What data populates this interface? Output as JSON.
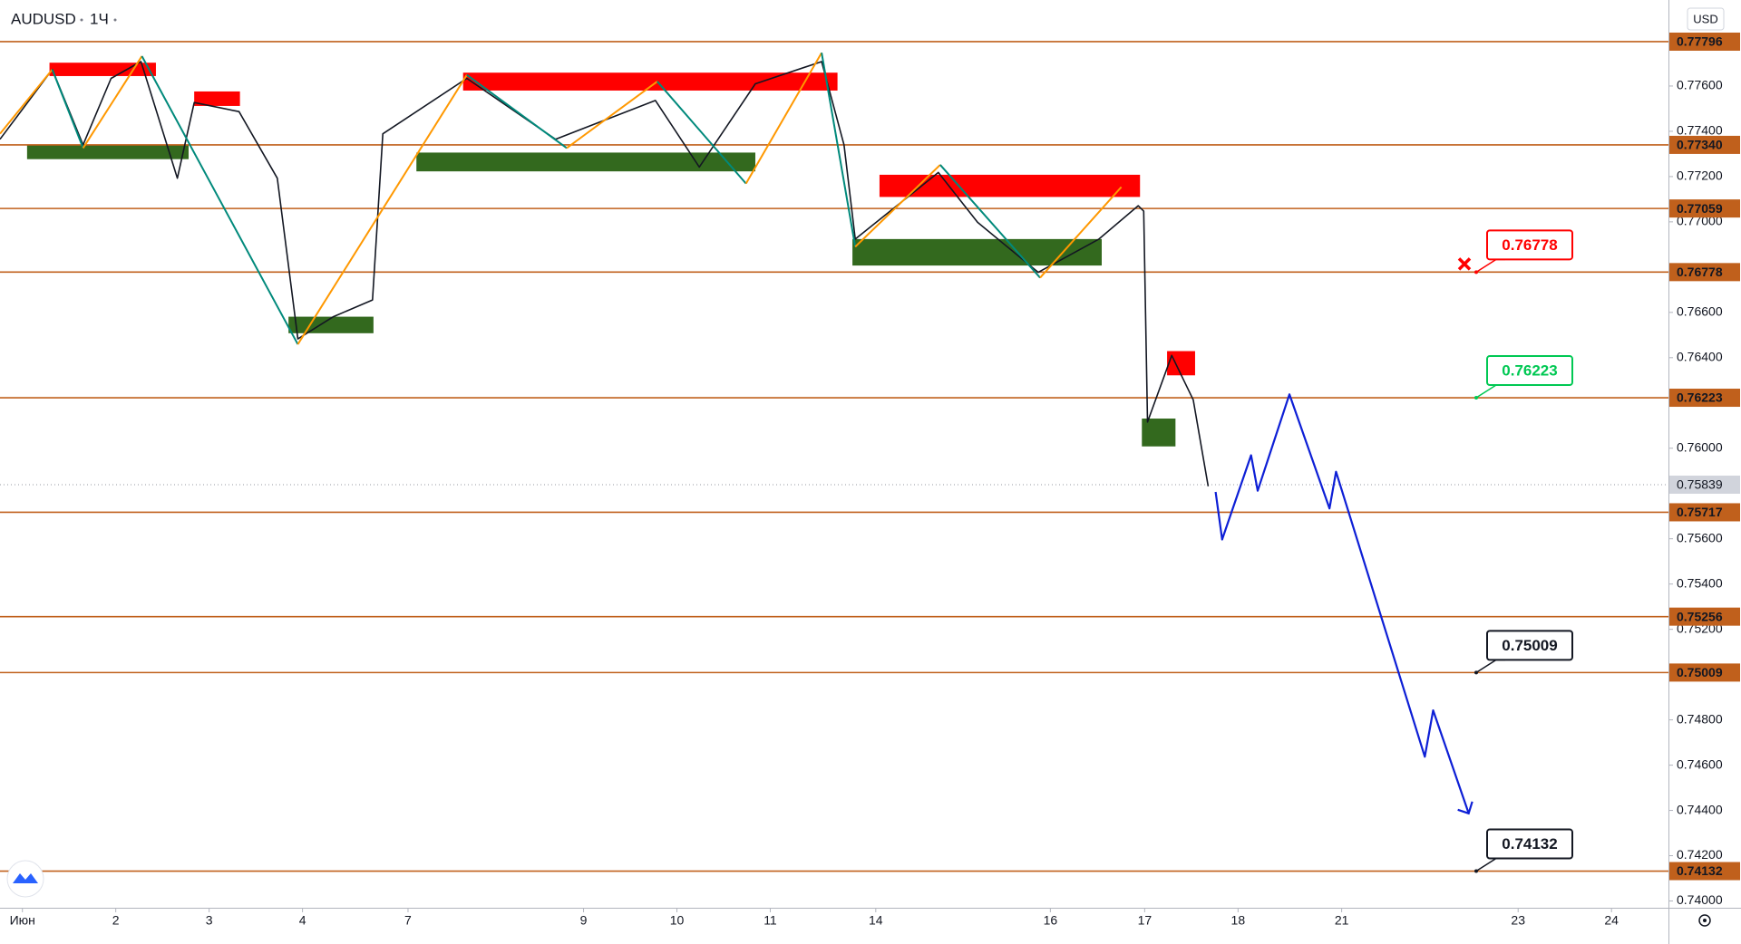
{
  "chart_data": {
    "type": "line",
    "symbol": "AUDUSD",
    "interval": "1Ч",
    "currency": "USD",
    "xlim": [
      -0.24,
      17.63
    ],
    "ylim": [
      0.7397,
      0.7798
    ],
    "xticks": [
      {
        "value": 0,
        "label": "Июн"
      },
      {
        "value": 1,
        "label": "2"
      },
      {
        "value": 2,
        "label": "3"
      },
      {
        "value": 3,
        "label": "4"
      },
      {
        "value": 4.13,
        "label": "7"
      },
      {
        "value": 6.01,
        "label": "9"
      },
      {
        "value": 7.01,
        "label": "10"
      },
      {
        "value": 8.01,
        "label": "11"
      },
      {
        "value": 9.14,
        "label": "14"
      },
      {
        "value": 11.01,
        "label": "16"
      },
      {
        "value": 12.02,
        "label": "17"
      },
      {
        "value": 13.02,
        "label": "18"
      },
      {
        "value": 14.13,
        "label": "21"
      },
      {
        "value": 16.02,
        "label": "23"
      },
      {
        "value": 17.02,
        "label": "24"
      }
    ],
    "yticks": [
      {
        "value": 0.776,
        "label": "0.77600"
      },
      {
        "value": 0.774,
        "label": "0.77400"
      },
      {
        "value": 0.772,
        "label": "0.77200"
      },
      {
        "value": 0.77,
        "label": "0.77000"
      },
      {
        "value": 0.766,
        "label": "0.76600"
      },
      {
        "value": 0.764,
        "label": "0.76400"
      },
      {
        "value": 0.76,
        "label": "0.76000"
      },
      {
        "value": 0.756,
        "label": "0.75600"
      },
      {
        "value": 0.754,
        "label": "0.75400"
      },
      {
        "value": 0.752,
        "label": "0.75200"
      },
      {
        "value": 0.748,
        "label": "0.74800"
      },
      {
        "value": 0.746,
        "label": "0.74600"
      },
      {
        "value": 0.744,
        "label": "0.74400"
      },
      {
        "value": 0.742,
        "label": "0.74200"
      },
      {
        "value": 0.74,
        "label": "0.74000"
      }
    ],
    "price": {
      "color": "#131722",
      "x": [
        -0.24,
        0.32,
        0.65,
        0.95,
        1.27,
        1.66,
        1.84,
        2.32,
        2.73,
        2.95,
        3.33,
        3.75,
        3.86,
        4.76,
        5.71,
        6.78,
        7.25,
        7.85,
        8.56,
        8.8,
        8.92,
        9.81,
        10.23,
        10.88,
        11.53,
        11.95,
        12.01,
        12.05,
        12.31,
        12.54,
        12.7
      ],
      "values": [
        0.77365,
        0.77673,
        0.7734,
        0.77634,
        0.77708,
        0.77193,
        0.77527,
        0.77487,
        0.77193,
        0.76483,
        0.76581,
        0.76655,
        0.77389,
        0.77634,
        0.77365,
        0.77536,
        0.77242,
        0.7761,
        0.77708,
        0.7734,
        0.76924,
        0.77218,
        0.76998,
        0.76777,
        0.76924,
        0.77071,
        0.77047,
        0.76116,
        0.7641,
        0.76214,
        0.75832
      ]
    },
    "zigzag": {
      "up_color": "#ff9800",
      "down_color": "#00897b",
      "x": [
        -0.24,
        0.32,
        0.65,
        1.28,
        2.95,
        4.76,
        5.83,
        6.8,
        7.75,
        8.56,
        8.92,
        9.83,
        10.9,
        11.77
      ],
      "values": [
        0.77389,
        0.77673,
        0.77326,
        0.77732,
        0.76459,
        0.77649,
        0.77326,
        0.7762,
        0.77169,
        0.77747,
        0.7689,
        0.77252,
        0.76753,
        0.77154
      ]
    },
    "projection": {
      "color": "#0d1fd6",
      "x": [
        12.78,
        12.85,
        13.16,
        13.23,
        13.57,
        14.0,
        14.07,
        15.02,
        15.11,
        15.49
      ],
      "values": [
        0.75807,
        0.75597,
        0.75969,
        0.75812,
        0.76238,
        0.75734,
        0.75896,
        0.74637,
        0.74842,
        0.74387
      ]
    },
    "zones": [
      {
        "x": [
          0.29,
          1.43
        ],
        "y": [
          0.77644,
          0.77703
        ],
        "color": "#ff0000"
      },
      {
        "x": [
          1.84,
          2.33
        ],
        "y": [
          0.77512,
          0.77576
        ],
        "color": "#ff0000"
      },
      {
        "x": [
          4.72,
          8.73
        ],
        "y": [
          0.7758,
          0.77659
        ],
        "color": "#ff0000"
      },
      {
        "x": [
          9.18,
          11.97
        ],
        "y": [
          0.7711,
          0.77208
        ],
        "color": "#ff0000"
      },
      {
        "x": [
          12.26,
          12.56
        ],
        "y": [
          0.76322,
          0.76429
        ],
        "color": "#ff0000"
      },
      {
        "x": [
          0.05,
          1.78
        ],
        "y": [
          0.77277,
          0.7734
        ],
        "color": "#33691e"
      },
      {
        "x": [
          2.85,
          3.76
        ],
        "y": [
          0.76508,
          0.76581
        ],
        "color": "#33691e"
      },
      {
        "x": [
          4.22,
          7.85
        ],
        "y": [
          0.77223,
          0.77306
        ],
        "color": "#33691e"
      },
      {
        "x": [
          8.89,
          11.56
        ],
        "y": [
          0.76807,
          0.76924
        ],
        "color": "#33691e"
      },
      {
        "x": [
          11.99,
          12.35
        ],
        "y": [
          0.76008,
          0.76131
        ],
        "color": "#33691e"
      }
    ],
    "level_color": "#c0601c",
    "levels": [
      0.77796,
      {
        "value": 0.7734,
        "label": "0.77340"
      },
      0.77059,
      0.76778,
      0.76223,
      0.75717,
      0.75256,
      0.75009,
      0.74132
    ],
    "current_price": 0.75839,
    "callouts": [
      {
        "value": 0.76778,
        "color": "#ff0000"
      },
      {
        "value": 0.76223,
        "color": "#00c853"
      },
      {
        "value": 0.75009,
        "color": "#131722"
      },
      {
        "value": 0.74132,
        "color": "#131722"
      }
    ]
  }
}
